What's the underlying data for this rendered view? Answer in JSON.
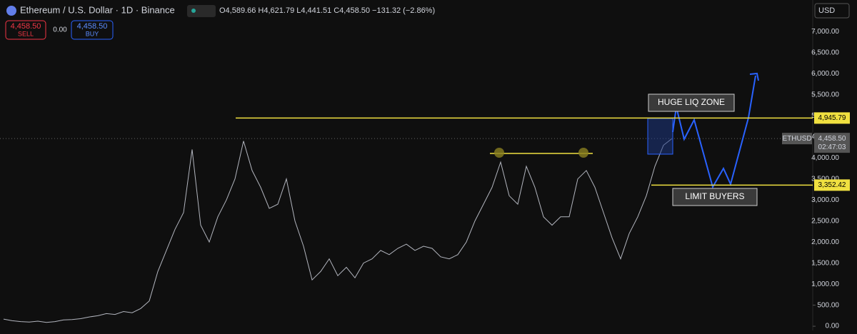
{
  "chart_data": {
    "type": "line",
    "title": "Ethereum / U.S. Dollar · 1D · Binance",
    "ohlc": "O4,589.66 H4,621.79 L4,441.51 C4,458.50 −131.32 (−2.86%)",
    "sell": {
      "price": "4,458.50",
      "label": "SELL"
    },
    "spread": "0.00",
    "buy": {
      "price": "4,458.50",
      "label": "BUY"
    },
    "currency": "USD",
    "symbol": "ETHUSD",
    "countdown": "02:47:03",
    "current_price": {
      "value": 4458.5,
      "label": "4,458.50"
    },
    "levels": [
      {
        "value": 4945.79,
        "label": "4,945.79"
      },
      {
        "value": 3352.42,
        "label": "3,352.42"
      }
    ],
    "annotations": [
      "HUGE LIQ ZONE",
      "LIMIT BUYERS"
    ],
    "color": "#b2b5be",
    "level_color": "#f0e040",
    "ylim": [
      -100,
      7750
    ],
    "yticks": [
      {
        "value": 0,
        "label": "0.00"
      },
      {
        "value": 500,
        "label": "500.00"
      },
      {
        "value": 1000,
        "label": "1,000.00"
      },
      {
        "value": 1500,
        "label": "1,500.00"
      },
      {
        "value": 2000,
        "label": "2,000.00"
      },
      {
        "value": 2500,
        "label": "2,500.00"
      },
      {
        "value": 3000,
        "label": "3,000.00"
      },
      {
        "value": 3500,
        "label": "3,500.00"
      },
      {
        "value": 4000,
        "label": "4,000.00"
      },
      {
        "value": 4500,
        "label": "4,500.00"
      },
      {
        "value": 5000,
        "label": "5,000.00"
      },
      {
        "value": 5500,
        "label": "5,500.00"
      },
      {
        "value": 6000,
        "label": "6,000.00"
      },
      {
        "value": 6500,
        "label": "6,500.00"
      },
      {
        "value": 7000,
        "label": "7,000.00"
      }
    ],
    "values": [
      170,
      130,
      110,
      100,
      120,
      90,
      110,
      150,
      160,
      180,
      220,
      250,
      300,
      280,
      350,
      320,
      420,
      600,
      1300,
      1800,
      2300,
      2700,
      4200,
      2400,
      2000,
      2600,
      3000,
      3500,
      4400,
      3700,
      3300,
      2800,
      2900,
      3500,
      2500,
      1900,
      1100,
      1300,
      1600,
      1200,
      1400,
      1150,
      1500,
      1600,
      1800,
      1700,
      1850,
      1950,
      1800,
      1900,
      1850,
      1650,
      1600,
      1700,
      2000,
      2500,
      2900,
      3300,
      3900,
      3100,
      2900,
      3800,
      3300,
      2600,
      2400,
      2600,
      2600,
      3500,
      3700,
      3300,
      2700,
      2100,
      1600,
      2200,
      2600,
      3100,
      3800,
      4300,
      4458.5
    ]
  }
}
